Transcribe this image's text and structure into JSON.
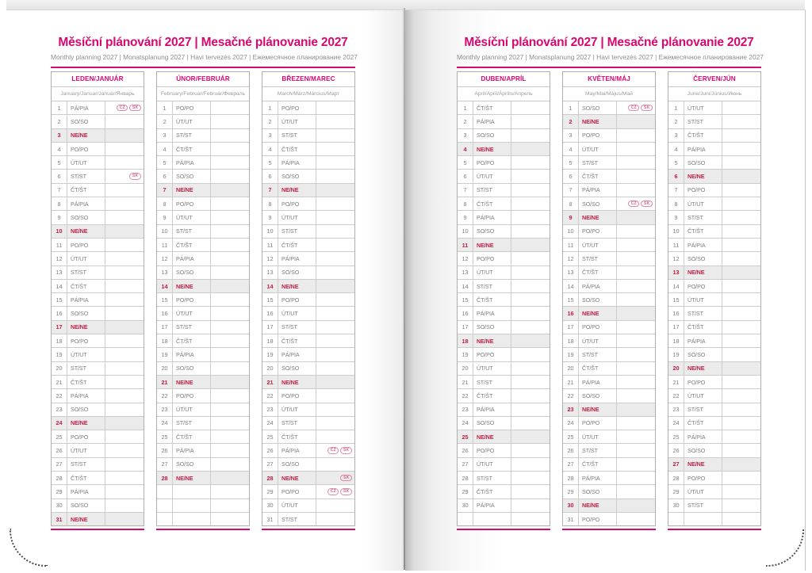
{
  "colors": {
    "accent": "#d60970",
    "sunday": "#c01f44",
    "badge_outline": "#e089ab",
    "sunday_bg": "#ebebeb",
    "grid": "#cccccc"
  },
  "header": {
    "title": "Měsíční plánování 2027 | Mesačné plánovanie 2027",
    "subtitle": "Monthly planning 2027 | Monatsplanung 2027 | Havi tervezés 2027 | Ежемесячное планирование 2027"
  },
  "sunday_label": "NE/NE",
  "months": [
    {
      "name": "LEDEN/JANUÁR",
      "languages": "January/Januar/Január/Январь",
      "rows": [
        [
          "1",
          "PÁ/PIA"
        ],
        [
          "2",
          "SO/SO"
        ],
        [
          "3",
          "NE/NE"
        ],
        [
          "4",
          "PO/PO"
        ],
        [
          "5",
          "ÚT/UT"
        ],
        [
          "6",
          "ST/ST"
        ],
        [
          "7",
          "ČT/ŠT"
        ],
        [
          "8",
          "PÁ/PIA"
        ],
        [
          "9",
          "SO/SO"
        ],
        [
          "10",
          "NE/NE"
        ],
        [
          "11",
          "PO/PO"
        ],
        [
          "12",
          "ÚT/UT"
        ],
        [
          "13",
          "ST/ST"
        ],
        [
          "14",
          "ČT/ŠT"
        ],
        [
          "15",
          "PÁ/PIA"
        ],
        [
          "16",
          "SO/SO"
        ],
        [
          "17",
          "NE/NE"
        ],
        [
          "18",
          "PO/PO"
        ],
        [
          "19",
          "ÚT/UT"
        ],
        [
          "20",
          "ST/ST"
        ],
        [
          "21",
          "ČT/ŠT"
        ],
        [
          "22",
          "PÁ/PIA"
        ],
        [
          "23",
          "SO/SO"
        ],
        [
          "24",
          "NE/NE"
        ],
        [
          "25",
          "PO/PO"
        ],
        [
          "26",
          "ÚT/UT"
        ],
        [
          "27",
          "ST/ST"
        ],
        [
          "28",
          "ČT/ŠT"
        ],
        [
          "29",
          "PÁ/PIA"
        ],
        [
          "30",
          "SO/SO"
        ],
        [
          "31",
          "NE/NE"
        ]
      ],
      "empty_rows": 0,
      "badges": {
        "1": [
          "CZ",
          "SK"
        ],
        "6": [
          "SK"
        ]
      }
    },
    {
      "name": "ÚNOR/FEBRUÁR",
      "languages": "February/Februar/Február/Февраль",
      "rows": [
        [
          "1",
          "PO/PO"
        ],
        [
          "2",
          "ÚT/UT"
        ],
        [
          "3",
          "ST/ST"
        ],
        [
          "4",
          "ČT/ŠT"
        ],
        [
          "5",
          "PÁ/PIA"
        ],
        [
          "6",
          "SO/SO"
        ],
        [
          "7",
          "NE/NE"
        ],
        [
          "8",
          "PO/PO"
        ],
        [
          "9",
          "ÚT/UT"
        ],
        [
          "10",
          "ST/ST"
        ],
        [
          "11",
          "ČT/ŠT"
        ],
        [
          "12",
          "PÁ/PIA"
        ],
        [
          "13",
          "SO/SO"
        ],
        [
          "14",
          "NE/NE"
        ],
        [
          "15",
          "PO/PO"
        ],
        [
          "16",
          "ÚT/UT"
        ],
        [
          "17",
          "ST/ST"
        ],
        [
          "18",
          "ČT/ŠT"
        ],
        [
          "19",
          "PÁ/PIA"
        ],
        [
          "20",
          "SO/SO"
        ],
        [
          "21",
          "NE/NE"
        ],
        [
          "22",
          "PO/PO"
        ],
        [
          "23",
          "ÚT/UT"
        ],
        [
          "24",
          "ST/ST"
        ],
        [
          "25",
          "ČT/ŠT"
        ],
        [
          "26",
          "PÁ/PIA"
        ],
        [
          "27",
          "SO/SO"
        ],
        [
          "28",
          "NE/NE"
        ]
      ],
      "empty_rows": 3,
      "badges": {}
    },
    {
      "name": "BŘEZEN/MAREC",
      "languages": "March/März/Március/Март",
      "rows": [
        [
          "1",
          "PO/PO"
        ],
        [
          "2",
          "ÚT/UT"
        ],
        [
          "3",
          "ST/ST"
        ],
        [
          "4",
          "ČT/ŠT"
        ],
        [
          "5",
          "PÁ/PIA"
        ],
        [
          "6",
          "SO/SO"
        ],
        [
          "7",
          "NE/NE"
        ],
        [
          "8",
          "PO/PO"
        ],
        [
          "9",
          "ÚT/UT"
        ],
        [
          "10",
          "ST/ST"
        ],
        [
          "11",
          "ČT/ŠT"
        ],
        [
          "12",
          "PÁ/PIA"
        ],
        [
          "13",
          "SO/SO"
        ],
        [
          "14",
          "NE/NE"
        ],
        [
          "15",
          "PO/PO"
        ],
        [
          "16",
          "ÚT/UT"
        ],
        [
          "17",
          "ST/ST"
        ],
        [
          "18",
          "ČT/ŠT"
        ],
        [
          "19",
          "PÁ/PIA"
        ],
        [
          "20",
          "SO/SO"
        ],
        [
          "21",
          "NE/NE"
        ],
        [
          "22",
          "PO/PO"
        ],
        [
          "23",
          "ÚT/UT"
        ],
        [
          "24",
          "ST/ST"
        ],
        [
          "25",
          "ČT/ŠT"
        ],
        [
          "26",
          "PÁ/PIA"
        ],
        [
          "27",
          "SO/SO"
        ],
        [
          "28",
          "NE/NE"
        ],
        [
          "29",
          "PO/PO"
        ],
        [
          "30",
          "ÚT/UT"
        ],
        [
          "31",
          "ST/ST"
        ]
      ],
      "empty_rows": 0,
      "badges": {
        "26": [
          "CZ",
          "SK"
        ],
        "28": [
          "SK"
        ],
        "29": [
          "CZ",
          "SK"
        ]
      }
    },
    {
      "name": "DUBEN/APRÍL",
      "languages": "April/April/Április/Апрель",
      "rows": [
        [
          "1",
          "ČT/ŠT"
        ],
        [
          "2",
          "PÁ/PIA"
        ],
        [
          "3",
          "SO/SO"
        ],
        [
          "4",
          "NE/NE"
        ],
        [
          "5",
          "PO/PO"
        ],
        [
          "6",
          "ÚT/UT"
        ],
        [
          "7",
          "ST/ST"
        ],
        [
          "8",
          "ČT/ŠT"
        ],
        [
          "9",
          "PÁ/PIA"
        ],
        [
          "10",
          "SO/SO"
        ],
        [
          "11",
          "NE/NE"
        ],
        [
          "12",
          "PO/PO"
        ],
        [
          "13",
          "ÚT/UT"
        ],
        [
          "14",
          "ST/ST"
        ],
        [
          "15",
          "ČT/ŠT"
        ],
        [
          "16",
          "PÁ/PIA"
        ],
        [
          "17",
          "SO/SO"
        ],
        [
          "18",
          "NE/NE"
        ],
        [
          "19",
          "PO/PO"
        ],
        [
          "20",
          "ÚT/UT"
        ],
        [
          "21",
          "ST/ST"
        ],
        [
          "22",
          "ČT/ŠT"
        ],
        [
          "23",
          "PÁ/PIA"
        ],
        [
          "24",
          "SO/SO"
        ],
        [
          "25",
          "NE/NE"
        ],
        [
          "26",
          "PO/PO"
        ],
        [
          "27",
          "ÚT/UT"
        ],
        [
          "28",
          "ST/ST"
        ],
        [
          "29",
          "ČT/ŠT"
        ],
        [
          "30",
          "PÁ/PIA"
        ]
      ],
      "empty_rows": 1,
      "badges": {}
    },
    {
      "name": "KVĚTEN/MÁJ",
      "languages": "May/Mai/Május/Май",
      "rows": [
        [
          "1",
          "SO/SO"
        ],
        [
          "2",
          "NE/NE"
        ],
        [
          "3",
          "PO/PO"
        ],
        [
          "4",
          "ÚT/UT"
        ],
        [
          "5",
          "ST/ST"
        ],
        [
          "6",
          "ČT/ŠT"
        ],
        [
          "7",
          "PÁ/PIA"
        ],
        [
          "8",
          "SO/SO"
        ],
        [
          "9",
          "NE/NE"
        ],
        [
          "10",
          "PO/PO"
        ],
        [
          "11",
          "ÚT/UT"
        ],
        [
          "12",
          "ST/ST"
        ],
        [
          "13",
          "ČT/ŠT"
        ],
        [
          "14",
          "PÁ/PIA"
        ],
        [
          "15",
          "SO/SO"
        ],
        [
          "16",
          "NE/NE"
        ],
        [
          "17",
          "PO/PO"
        ],
        [
          "18",
          "ÚT/UT"
        ],
        [
          "19",
          "ST/ST"
        ],
        [
          "20",
          "ČT/ŠT"
        ],
        [
          "21",
          "PÁ/PIA"
        ],
        [
          "22",
          "SO/SO"
        ],
        [
          "23",
          "NE/NE"
        ],
        [
          "24",
          "PO/PO"
        ],
        [
          "25",
          "ÚT/UT"
        ],
        [
          "26",
          "ST/ST"
        ],
        [
          "27",
          "ČT/ŠT"
        ],
        [
          "28",
          "PÁ/PIA"
        ],
        [
          "29",
          "SO/SO"
        ],
        [
          "30",
          "NE/NE"
        ],
        [
          "31",
          "PO/PO"
        ]
      ],
      "empty_rows": 0,
      "badges": {
        "1": [
          "CZ",
          "SK"
        ],
        "8": [
          "CZ",
          "SK"
        ]
      }
    },
    {
      "name": "ČERVEN/JÚN",
      "languages": "June/Juni/Június/Июнь",
      "rows": [
        [
          "1",
          "ÚT/UT"
        ],
        [
          "2",
          "ST/ST"
        ],
        [
          "3",
          "ČT/ŠT"
        ],
        [
          "4",
          "PÁ/PIA"
        ],
        [
          "5",
          "SO/SO"
        ],
        [
          "6",
          "NE/NE"
        ],
        [
          "7",
          "PO/PO"
        ],
        [
          "8",
          "ÚT/UT"
        ],
        [
          "9",
          "ST/ST"
        ],
        [
          "10",
          "ČT/ŠT"
        ],
        [
          "11",
          "PÁ/PIA"
        ],
        [
          "12",
          "SO/SO"
        ],
        [
          "13",
          "NE/NE"
        ],
        [
          "14",
          "PO/PO"
        ],
        [
          "15",
          "ÚT/UT"
        ],
        [
          "16",
          "ST/ST"
        ],
        [
          "17",
          "ČT/ŠT"
        ],
        [
          "18",
          "PÁ/PIA"
        ],
        [
          "19",
          "SO/SO"
        ],
        [
          "20",
          "NE/NE"
        ],
        [
          "21",
          "PO/PO"
        ],
        [
          "22",
          "ÚT/UT"
        ],
        [
          "23",
          "ST/ST"
        ],
        [
          "24",
          "ČT/ŠT"
        ],
        [
          "25",
          "PÁ/PIA"
        ],
        [
          "26",
          "SO/SO"
        ],
        [
          "27",
          "NE/NE"
        ],
        [
          "28",
          "PO/PO"
        ],
        [
          "29",
          "ÚT/UT"
        ],
        [
          "30",
          "ST/ST"
        ]
      ],
      "empty_rows": 1,
      "badges": {}
    }
  ]
}
